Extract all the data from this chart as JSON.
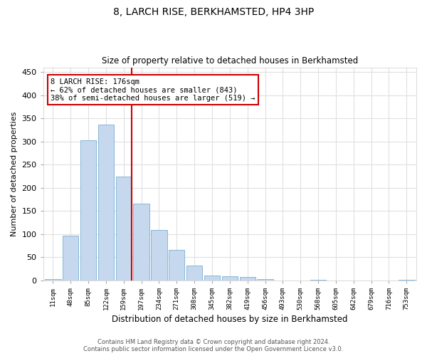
{
  "title": "8, LARCH RISE, BERKHAMSTED, HP4 3HP",
  "subtitle": "Size of property relative to detached houses in Berkhamsted",
  "xlabel": "Distribution of detached houses by size in Berkhamsted",
  "ylabel": "Number of detached properties",
  "x_labels": [
    "11sqm",
    "48sqm",
    "85sqm",
    "122sqm",
    "159sqm",
    "197sqm",
    "234sqm",
    "271sqm",
    "308sqm",
    "345sqm",
    "382sqm",
    "419sqm",
    "456sqm",
    "493sqm",
    "530sqm",
    "568sqm",
    "605sqm",
    "642sqm",
    "679sqm",
    "716sqm",
    "753sqm"
  ],
  "bar_values": [
    3,
    97,
    303,
    337,
    224,
    165,
    109,
    66,
    32,
    11,
    9,
    7,
    3,
    0,
    0,
    1,
    0,
    0,
    0,
    0,
    1
  ],
  "bar_color": "#c5d8ed",
  "bar_edge_color": "#7aafd4",
  "vline_color": "#cc0000",
  "annotation_line1": "8 LARCH RISE: 176sqm",
  "annotation_line2": "← 62% of detached houses are smaller (843)",
  "annotation_line3": "38% of semi-detached houses are larger (519) →",
  "annotation_box_color": "#ffffff",
  "annotation_box_edge": "#cc0000",
  "ylim": [
    0,
    460
  ],
  "yticks": [
    0,
    50,
    100,
    150,
    200,
    250,
    300,
    350,
    400,
    450
  ],
  "footer_line1": "Contains HM Land Registry data © Crown copyright and database right 2024.",
  "footer_line2": "Contains public sector information licensed under the Open Government Licence v3.0.",
  "bg_color": "#ffffff",
  "plot_bg_color": "#ffffff",
  "grid_color": "#e0e0e0"
}
